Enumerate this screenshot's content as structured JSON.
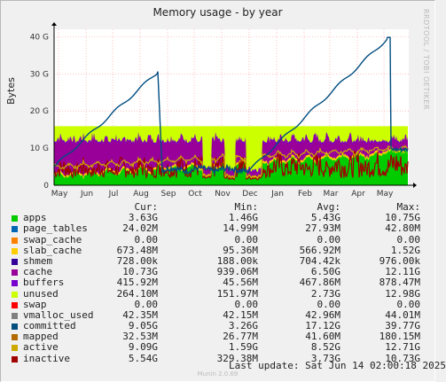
{
  "title": "Memory usage - by year",
  "side_label": "RRDTOOL / TOBI OETIKER",
  "footer": {
    "last_update": "Last update: Sat Jun 14 02:00:18 2025",
    "version": "Munin 2.0.69"
  },
  "chart_data": {
    "type": "area",
    "title": "Memory usage - by year",
    "ylabel": "Bytes",
    "ylim": [
      0,
      42
    ],
    "y_unit": "G",
    "yticks": [
      {
        "value": 0,
        "label": "0"
      },
      {
        "value": 10,
        "label": "10 G"
      },
      {
        "value": 20,
        "label": "20 G"
      },
      {
        "value": 30,
        "label": "30 G"
      },
      {
        "value": 40,
        "label": "40 G"
      }
    ],
    "x_months": [
      "May",
      "Jun",
      "Jul",
      "Aug",
      "Sep",
      "Oct",
      "Nov",
      "Dec",
      "Jan",
      "Feb",
      "Mar",
      "Apr",
      "May"
    ],
    "grid": true,
    "stack_total_approx": 16,
    "series": [
      {
        "name": "apps",
        "color": "#00cc00",
        "cur": "3.63G",
        "min": "1.46G",
        "avg": "5.43G",
        "max": "10.75G"
      },
      {
        "name": "page_tables",
        "color": "#0066b3",
        "cur": "24.02M",
        "min": "14.99M",
        "avg": "27.93M",
        "max": "42.80M"
      },
      {
        "name": "swap_cache",
        "color": "#ff8000",
        "cur": "0.00",
        "min": "0.00",
        "avg": "0.00",
        "max": "0.00"
      },
      {
        "name": "slab_cache",
        "color": "#ffcc00",
        "cur": "673.48M",
        "min": "95.36M",
        "avg": "566.92M",
        "max": "1.52G"
      },
      {
        "name": "shmem",
        "color": "#330099",
        "cur": "728.00k",
        "min": "188.00k",
        "avg": "704.42k",
        "max": "976.00k"
      },
      {
        "name": "cache",
        "color": "#990099",
        "cur": "10.73G",
        "min": "939.06M",
        "avg": "6.50G",
        "max": "12.11G"
      },
      {
        "name": "buffers",
        "color": "#7700cc",
        "cur": "415.92M",
        "min": "45.56M",
        "avg": "467.86M",
        "max": "878.47M"
      },
      {
        "name": "unused",
        "color": "#ccff00",
        "cur": "264.10M",
        "min": "151.97M",
        "avg": "2.73G",
        "max": "12.98G"
      },
      {
        "name": "swap",
        "color": "#ff0000",
        "cur": "0.00",
        "min": "0.00",
        "avg": "0.00",
        "max": "0.00"
      },
      {
        "name": "vmalloc_used",
        "color": "#808080",
        "cur": "42.35M",
        "min": "42.15M",
        "avg": "42.96M",
        "max": "44.01M"
      },
      {
        "name": "committed",
        "color": "#004d80",
        "cur": "9.05G",
        "min": "3.26G",
        "avg": "17.12G",
        "max": "39.77G"
      },
      {
        "name": "mapped",
        "color": "#b36b00",
        "cur": "32.53M",
        "min": "26.77M",
        "avg": "41.60M",
        "max": "180.15M"
      },
      {
        "name": "active",
        "color": "#ccaa00",
        "cur": "9.09G",
        "min": "1.59G",
        "avg": "8.52G",
        "max": "12.71G"
      },
      {
        "name": "inactive",
        "color": "#a00000",
        "cur": "5.54G",
        "min": "329.38M",
        "avg": "3.73G",
        "max": "10.73G"
      }
    ]
  },
  "legend": {
    "headers": {
      "cur": "Cur:",
      "min": "Min:",
      "avg": "Avg:",
      "max": "Max:"
    }
  }
}
